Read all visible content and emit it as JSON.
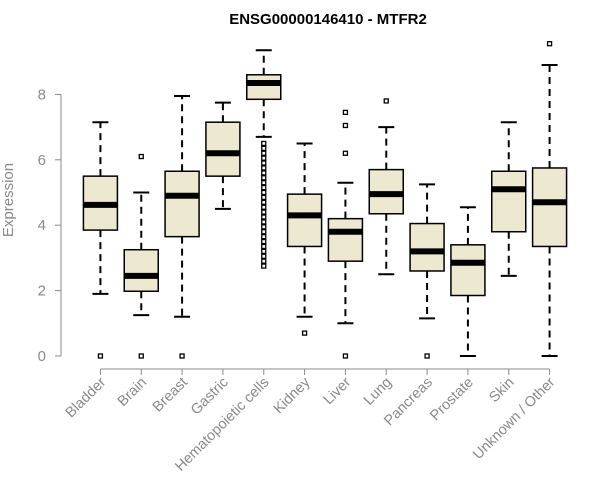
{
  "chart_data": {
    "type": "boxplot",
    "title": "ENSG00000146410 - MTFR2",
    "ylabel": "Expression",
    "ylim": [
      0,
      10
    ],
    "yticks": [
      0,
      2,
      4,
      6,
      8
    ],
    "box_fill": "#EDE8D0",
    "categories": [
      "Bladder",
      "Brain",
      "Breast",
      "Gastric",
      "Hematopoietic cells",
      "Kidney",
      "Liver",
      "Lung",
      "Pancreas",
      "Prostate",
      "Skin",
      "Unknown / Other"
    ],
    "boxes": [
      {
        "min": 1.9,
        "q1": 3.85,
        "median": 4.62,
        "q3": 5.5,
        "max": 7.15,
        "outliers": [
          0.0
        ]
      },
      {
        "min": 1.25,
        "q1": 1.98,
        "median": 2.45,
        "q3": 3.25,
        "max": 5.0,
        "outliers": [
          0.0,
          6.1
        ]
      },
      {
        "min": 1.2,
        "q1": 3.65,
        "median": 4.9,
        "q3": 5.65,
        "max": 7.95,
        "outliers": [
          0.0
        ]
      },
      {
        "min": 4.5,
        "q1": 5.5,
        "median": 6.2,
        "q3": 7.15,
        "max": 7.75,
        "outliers": []
      },
      {
        "min": 6.7,
        "q1": 7.85,
        "median": 8.35,
        "q3": 8.6,
        "max": 9.35,
        "outliers": [
          2.75,
          2.9,
          3.05,
          3.2,
          3.35,
          3.5,
          3.65,
          3.8,
          3.95,
          4.1,
          4.25,
          4.4,
          4.55,
          4.7,
          4.85,
          5.0,
          5.15,
          5.3,
          5.45,
          5.6,
          5.75,
          5.9,
          6.05,
          6.2,
          6.35,
          6.5
        ]
      },
      {
        "min": 1.2,
        "q1": 3.35,
        "median": 4.3,
        "q3": 4.95,
        "max": 6.5,
        "outliers": [
          0.7
        ]
      },
      {
        "min": 1.0,
        "q1": 2.9,
        "median": 3.8,
        "q3": 4.2,
        "max": 5.3,
        "outliers": [
          0.0,
          6.2,
          7.05,
          7.45
        ]
      },
      {
        "min": 2.5,
        "q1": 4.35,
        "median": 4.95,
        "q3": 5.7,
        "max": 7.0,
        "outliers": [
          7.8
        ]
      },
      {
        "min": 1.15,
        "q1": 2.6,
        "median": 3.2,
        "q3": 4.05,
        "max": 5.25,
        "outliers": [
          0.0
        ]
      },
      {
        "min": 0.0,
        "q1": 1.85,
        "median": 2.85,
        "q3": 3.4,
        "max": 4.55,
        "outliers": []
      },
      {
        "min": 2.45,
        "q1": 3.8,
        "median": 5.1,
        "q3": 5.65,
        "max": 7.15,
        "outliers": []
      },
      {
        "min": 0.0,
        "q1": 3.35,
        "median": 4.7,
        "q3": 5.75,
        "max": 8.9,
        "outliers": [
          9.55
        ]
      }
    ]
  }
}
